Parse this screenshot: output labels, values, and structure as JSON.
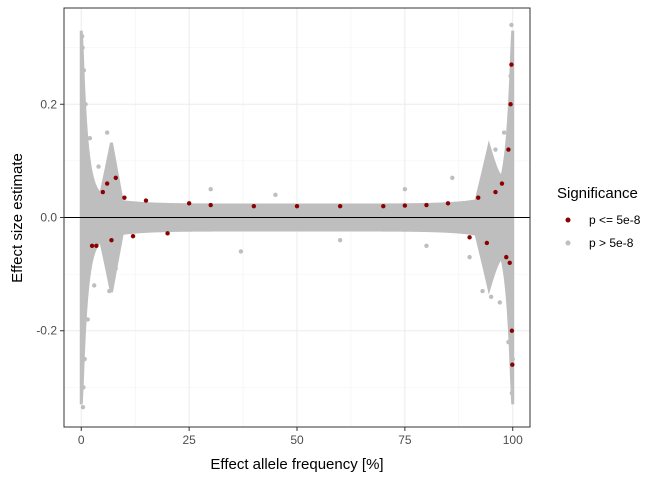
{
  "chart_data": {
    "type": "scatter",
    "xlabel": "Effect allele frequency [%]",
    "ylabel": "Effect size estimate",
    "xlim": [
      -4,
      104
    ],
    "ylim": [
      -0.37,
      0.37
    ],
    "x_ticks": [
      0,
      25,
      50,
      75,
      100
    ],
    "x_tick_labels": [
      "0",
      "25",
      "50",
      "75",
      "100"
    ],
    "y_ticks": [
      -0.2,
      0.0,
      0.2
    ],
    "y_tick_labels": [
      "-0.2",
      "0.0",
      "0.2"
    ],
    "hline": 0,
    "grid": true,
    "legend": {
      "title": "Significance",
      "placement": "right",
      "entries": [
        {
          "label": "p <= 5e-8",
          "color": "#8b0000"
        },
        {
          "label": "p > 5e-8",
          "color": "#bebebe"
        }
      ]
    },
    "series": [
      {
        "name": "p > 5e-8",
        "color": "#bebebe",
        "x": [
          0.2,
          0.3,
          0.4,
          0.5,
          0.6,
          0.8,
          1.0,
          1.5,
          2.0,
          3.0,
          4.0,
          6.0,
          6.5,
          7.0,
          8.0,
          30.0,
          37.0,
          45.0,
          60.0,
          75.0,
          80.0,
          86.0,
          90.0,
          93.0,
          94.0,
          95.0,
          96.0,
          97.0,
          98.0,
          99.0,
          99.5,
          99.7,
          99.8,
          100.0
        ],
        "y": [
          0.32,
          0.3,
          -0.335,
          -0.3,
          0.26,
          -0.25,
          0.2,
          -0.18,
          0.14,
          -0.12,
          0.09,
          0.15,
          -0.13,
          0.12,
          -0.09,
          0.05,
          -0.06,
          0.04,
          -0.04,
          0.05,
          -0.05,
          0.07,
          -0.07,
          -0.13,
          0.1,
          -0.14,
          0.12,
          -0.15,
          0.15,
          -0.22,
          0.25,
          0.34,
          -0.31,
          -0.25
        ]
      },
      {
        "name": "p <= 5e-8",
        "color": "#8b0000",
        "x": [
          2.5,
          3.5,
          5.0,
          6.0,
          7.0,
          8.0,
          10.0,
          12.0,
          15.0,
          20.0,
          25.0,
          30.0,
          40.0,
          50.0,
          60.0,
          70.0,
          75.0,
          80.0,
          85.0,
          90.0,
          92.0,
          94.0,
          96.0,
          97.5,
          98.5,
          99.0,
          99.3,
          99.5,
          99.7,
          99.8,
          99.9
        ],
        "y": [
          -0.05,
          -0.05,
          0.045,
          0.06,
          -0.04,
          0.07,
          0.035,
          -0.033,
          0.03,
          -0.028,
          0.025,
          0.022,
          0.02,
          0.02,
          0.02,
          0.02,
          0.021,
          0.022,
          0.025,
          -0.035,
          0.035,
          -0.045,
          0.045,
          0.06,
          -0.07,
          0.12,
          -0.08,
          0.2,
          0.27,
          -0.2,
          -0.26
        ]
      }
    ]
  }
}
